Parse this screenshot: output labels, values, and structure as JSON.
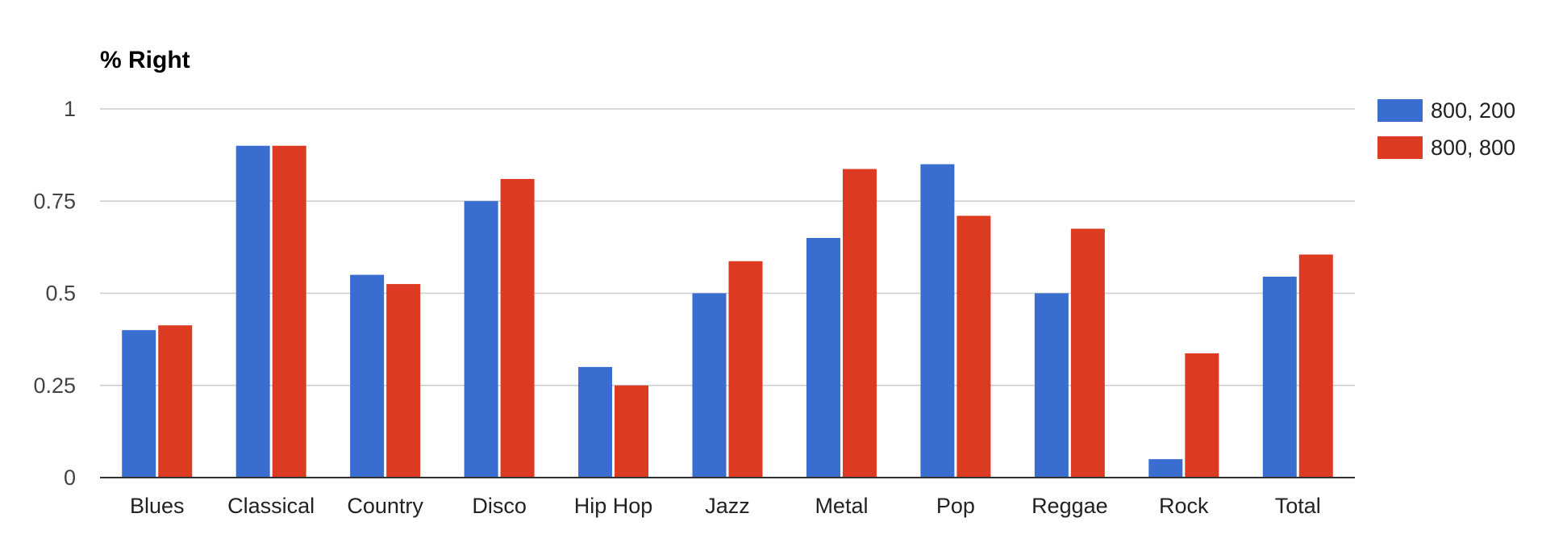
{
  "chart_data": {
    "type": "bar",
    "title": "% Right",
    "xlabel": "",
    "ylabel": "",
    "ylim": [
      0,
      1
    ],
    "yticks": [
      {
        "value": 0,
        "label": "0"
      },
      {
        "value": 0.25,
        "label": "0.25"
      },
      {
        "value": 0.5,
        "label": "0.5"
      },
      {
        "value": 0.75,
        "label": "0.75"
      },
      {
        "value": 1,
        "label": "1"
      }
    ],
    "grid": true,
    "legend_position": "right",
    "categories": [
      "Blues",
      "Classical",
      "Country",
      "Disco",
      "Hip Hop",
      "Jazz",
      "Metal",
      "Pop",
      "Reggae",
      "Rock",
      "Total"
    ],
    "series": [
      {
        "name": "800, 200",
        "color": "#3a6dd0",
        "values": [
          0.4,
          0.9,
          0.55,
          0.75,
          0.3,
          0.5,
          0.65,
          0.85,
          0.5,
          0.05,
          0.545
        ]
      },
      {
        "name": "800, 800",
        "color": "#dc3b22",
        "values": [
          0.413,
          0.9,
          0.525,
          0.81,
          0.25,
          0.587,
          0.837,
          0.71,
          0.675,
          0.337,
          0.605
        ]
      }
    ]
  }
}
